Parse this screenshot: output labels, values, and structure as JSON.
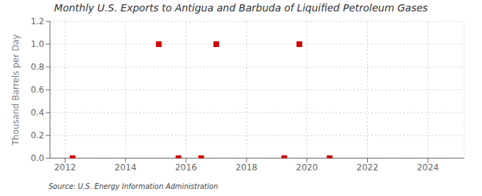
{
  "chart_data": {
    "type": "scatter",
    "title": "Monthly U.S. Exports to Antigua and Barbuda of Liquified Petroleum Gases",
    "y_label": "Thousand Barrels per Day",
    "annotations": [
      "Source: U.S. Energy Information Administration"
    ],
    "x": [
      2012.25,
      2015.1,
      2015.75,
      2016.5,
      2017.0,
      2019.25,
      2019.75,
      2020.75
    ],
    "values": [
      0.0,
      1.0,
      0.0,
      0.0,
      1.0,
      0.0,
      1.0,
      0.0
    ],
    "color": "#cc0000",
    "marker": "square",
    "xlim": [
      2011.5,
      2025.2
    ],
    "ylim": [
      0.0,
      1.2
    ],
    "xticks": [
      2012,
      2014,
      2016,
      2018,
      2020,
      2022,
      2024
    ],
    "yticks": [
      {
        "value": 0.0,
        "label": "0.0"
      },
      {
        "value": 0.2,
        "label": "0.2"
      },
      {
        "value": 0.4,
        "label": "0.4"
      },
      {
        "value": 0.6,
        "label": "0.6"
      },
      {
        "value": 0.8,
        "label": "0.8"
      },
      {
        "value": 1.0,
        "label": "1.0"
      },
      {
        "value": 1.2,
        "label": "1.2"
      }
    ],
    "grid": true
  }
}
